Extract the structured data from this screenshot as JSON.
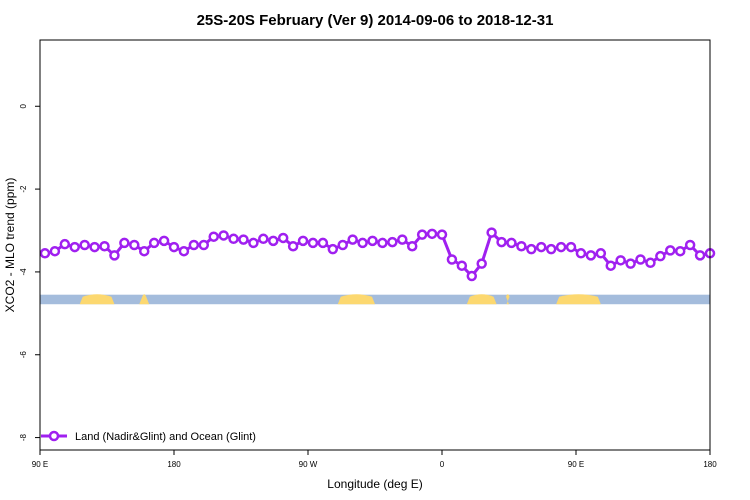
{
  "chart_data": {
    "type": "line",
    "title": "25S-20S February (Ver 9)   2014-09-06 to 2018-12-31",
    "xlabel": "Longitude (deg E)",
    "ylabel": "XCO2 - MLO trend (ppm)",
    "xlim": [
      -90,
      180
    ],
    "ylim": [
      -8.3,
      1.6
    ],
    "x_ticks": [
      {
        "value": -90,
        "label": "90 E"
      },
      {
        "value": -36,
        "label": "180"
      },
      {
        "value": 18,
        "label": "90 W"
      },
      {
        "value": 72,
        "label": "0"
      },
      {
        "value": 126,
        "label": "90 E"
      },
      {
        "value": 180,
        "label": "180"
      }
    ],
    "y_ticks": [
      0,
      -2,
      -4,
      -6,
      -8
    ],
    "grid": false,
    "legend_position": "bottom-left",
    "series": [
      {
        "name": "Land (Nadir&Glint) and Ocean (Glint)",
        "color": "#a020f0",
        "x": [
          -88,
          -84,
          -80,
          -76,
          -72,
          -68,
          -64,
          -60,
          -56,
          -52,
          -48,
          -44,
          -40,
          -36,
          -32,
          -28,
          -24,
          -20,
          -16,
          -12,
          -8,
          -4,
          0,
          4,
          8,
          12,
          16,
          20,
          24,
          28,
          32,
          36,
          40,
          44,
          48,
          52,
          56,
          60,
          64,
          68,
          72,
          76,
          80,
          84,
          88,
          92,
          96,
          100,
          104,
          108,
          112,
          116,
          120,
          124,
          128,
          132,
          136,
          140,
          144,
          148,
          152,
          156,
          160,
          164,
          168,
          172,
          176,
          180
        ],
        "y": [
          -3.55,
          -3.5,
          -3.33,
          -3.4,
          -3.35,
          -3.4,
          -3.38,
          -3.6,
          -3.3,
          -3.35,
          -3.5,
          -3.3,
          -3.25,
          -3.4,
          -3.5,
          -3.35,
          -3.35,
          -3.15,
          -3.12,
          -3.2,
          -3.22,
          -3.3,
          -3.2,
          -3.25,
          -3.18,
          -3.38,
          -3.25,
          -3.3,
          -3.3,
          -3.45,
          -3.35,
          -3.22,
          -3.3,
          -3.25,
          -3.3,
          -3.28,
          -3.22,
          -3.38,
          -3.1,
          -3.08,
          -3.1,
          -3.7,
          -3.85,
          -4.1,
          -3.8,
          -3.05,
          -3.28,
          -3.3,
          -3.38,
          -3.45,
          -3.4,
          -3.45,
          -3.4,
          -3.4,
          -3.55,
          -3.6,
          -3.55,
          -3.85,
          -3.72,
          -3.8,
          -3.7,
          -3.78,
          -3.62,
          -3.48,
          -3.5,
          -3.35,
          -3.6,
          -3.55
        ]
      }
    ],
    "surface_band": {
      "y_top": -4.55,
      "y_bottom": -4.78,
      "ocean_color": "#a4bcdc",
      "land_color": "#fcd870",
      "land_segments": [
        [
          -74,
          -60
        ],
        [
          -50,
          -46
        ],
        [
          30,
          45
        ],
        [
          82,
          94
        ],
        [
          98,
          99
        ],
        [
          118,
          136
        ]
      ]
    }
  }
}
